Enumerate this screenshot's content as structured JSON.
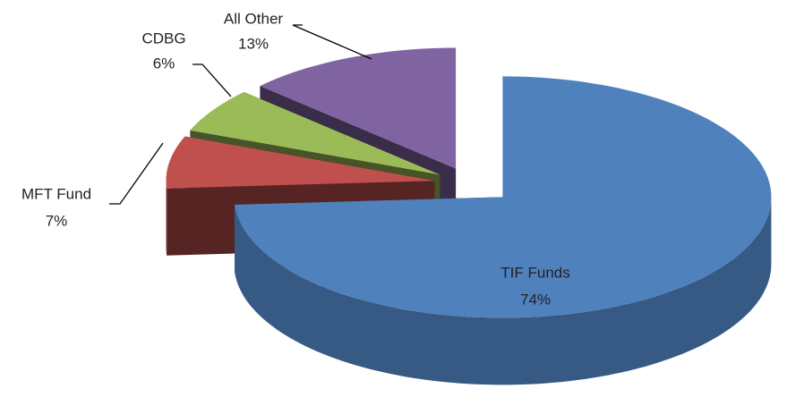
{
  "chart_data": {
    "type": "pie",
    "categories": [
      "TIF Funds",
      "MFT Fund",
      "CDBG",
      "All Other"
    ],
    "values": [
      74,
      7,
      6,
      13
    ],
    "value_labels": [
      "74%",
      "7%",
      "6%",
      "13%"
    ],
    "colors": [
      "#4f81bd",
      "#c0504d",
      "#9bbb59",
      "#8064a2"
    ]
  }
}
